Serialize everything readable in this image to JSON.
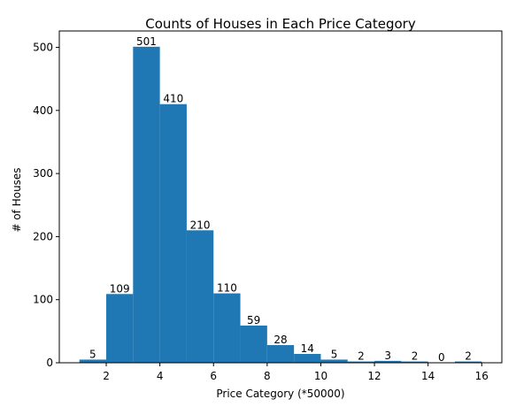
{
  "chart_data": {
    "type": "bar",
    "title": "Counts of Houses in Each Price Category",
    "xlabel": "Price Category (*50000)",
    "ylabel": "# of Houses",
    "bins": [
      {
        "start": 1,
        "end": 2,
        "value": 5
      },
      {
        "start": 2,
        "end": 3,
        "value": 109
      },
      {
        "start": 3,
        "end": 4,
        "value": 501
      },
      {
        "start": 4,
        "end": 5,
        "value": 410
      },
      {
        "start": 5,
        "end": 6,
        "value": 210
      },
      {
        "start": 6,
        "end": 7,
        "value": 110
      },
      {
        "start": 7,
        "end": 8,
        "value": 59
      },
      {
        "start": 8,
        "end": 9,
        "value": 28
      },
      {
        "start": 9,
        "end": 10,
        "value": 14
      },
      {
        "start": 10,
        "end": 11,
        "value": 5
      },
      {
        "start": 11,
        "end": 12,
        "value": 2
      },
      {
        "start": 12,
        "end": 13,
        "value": 3
      },
      {
        "start": 13,
        "end": 14,
        "value": 2
      },
      {
        "start": 14,
        "end": 15,
        "value": 0
      },
      {
        "start": 15,
        "end": 16,
        "value": 2
      }
    ],
    "xlim": [
      0.25,
      16.75
    ],
    "ylim": [
      0,
      526
    ],
    "xticks": [
      2,
      4,
      6,
      8,
      10,
      12,
      14,
      16
    ],
    "yticks": [
      0,
      100,
      200,
      300,
      400,
      500
    ],
    "grid": false,
    "bar_color": "#1f77b4"
  }
}
